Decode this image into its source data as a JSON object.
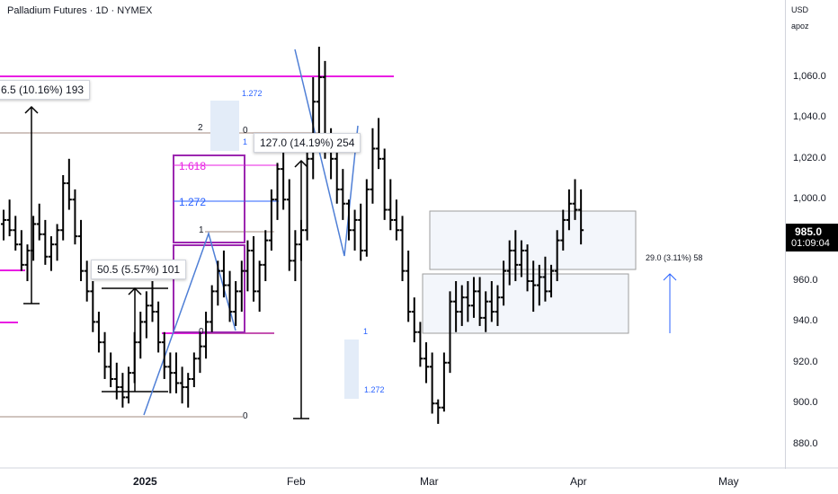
{
  "header": {
    "title": "Palladium Futures · 1D · NYMEX"
  },
  "axis": {
    "currency": "USD",
    "sub": "apoz"
  },
  "price": {
    "last": "985.0",
    "countdown": "01:09:04"
  },
  "colors": {
    "candle": "#000000",
    "magenta": "#e91ee3",
    "purple": "#9c27b0",
    "blue": "#2962ff",
    "zigzag": "#4f7fd6",
    "fibgrey": "#a1887f",
    "lightbox": "#e3ecf8"
  },
  "measures": {
    "left": "6.5 (10.16%) 193",
    "mid": "50.5 (5.57%) 101",
    "feb": "127.0 (14.19%) 254",
    "right": "29.0 (3.11%) 58"
  },
  "fib_labels": {
    "f1618": "1.618",
    "f1272": "1.272",
    "f1": "1",
    "f0": "0",
    "f2": "2",
    "f0_top": "0",
    "f1_top": "1",
    "f0_bottom": "0",
    "blue1272_top": "1.272",
    "blue1_mar": "1",
    "blue1272_mar": "1.272"
  },
  "chart_data": {
    "type": "ohlc",
    "title": "Palladium Futures · 1D · NYMEX",
    "ylim": [
      870,
      1080
    ],
    "y_ticks": [
      "1,060.0",
      "1,040.0",
      "1,020.0",
      "1,000.0",
      "980.0",
      "960.0",
      "940.0",
      "920.0",
      "900.0",
      "880.0"
    ],
    "x_ticks": [
      "2025",
      "Feb",
      "Mar",
      "Apr",
      "May"
    ],
    "last_price": 985.0,
    "series": [
      {
        "values": [
          [
            988,
            995,
            980,
            990
          ],
          [
            990,
            1000,
            982,
            985
          ],
          [
            985,
            992,
            975,
            978
          ],
          [
            978,
            985,
            965,
            968
          ],
          [
            968,
            978,
            960,
            975
          ],
          [
            975,
            992,
            970,
            988
          ],
          [
            988,
            998,
            980,
            983
          ],
          [
            983,
            990,
            968,
            972
          ],
          [
            972,
            982,
            965,
            978
          ],
          [
            978,
            988,
            970,
            985
          ],
          [
            985,
            1012,
            980,
            1008
          ],
          [
            1008,
            1020,
            995,
            1000
          ],
          [
            1000,
            1005,
            978,
            982
          ],
          [
            982,
            990,
            960,
            965
          ],
          [
            965,
            970,
            950,
            955
          ],
          [
            955,
            960,
            935,
            940
          ],
          [
            940,
            945,
            925,
            930
          ],
          [
            930,
            935,
            912,
            918
          ],
          [
            918,
            925,
            908,
            912
          ],
          [
            912,
            920,
            902,
            908
          ],
          [
            908,
            915,
            898,
            903
          ],
          [
            903,
            918,
            900,
            915
          ],
          [
            915,
            935,
            910,
            930
          ],
          [
            930,
            945,
            922,
            940
          ],
          [
            940,
            955,
            932,
            948
          ],
          [
            948,
            960,
            940,
            945
          ],
          [
            945,
            950,
            925,
            930
          ],
          [
            930,
            935,
            912,
            918
          ],
          [
            918,
            925,
            905,
            915
          ],
          [
            915,
            925,
            905,
            910
          ],
          [
            910,
            918,
            900,
            908
          ],
          [
            908,
            915,
            898,
            912
          ],
          [
            912,
            925,
            908,
            922
          ],
          [
            922,
            935,
            915,
            928
          ],
          [
            928,
            945,
            922,
            940
          ],
          [
            940,
            958,
            935,
            955
          ],
          [
            955,
            970,
            948,
            965
          ],
          [
            965,
            975,
            952,
            958
          ],
          [
            958,
            965,
            940,
            945
          ],
          [
            945,
            960,
            938,
            955
          ],
          [
            955,
            970,
            945,
            965
          ],
          [
            965,
            980,
            955,
            975
          ],
          [
            975,
            982,
            950,
            955
          ],
          [
            955,
            970,
            945,
            968
          ],
          [
            968,
            985,
            960,
            980
          ],
          [
            980,
            1005,
            975,
            1000
          ],
          [
            1000,
            1018,
            990,
            1015
          ],
          [
            1015,
            1025,
            995,
            1000
          ],
          [
            1000,
            1010,
            965,
            970
          ],
          [
            970,
            985,
            960,
            978
          ],
          [
            978,
            990,
            970,
            985
          ],
          [
            985,
            1025,
            980,
            1020
          ],
          [
            1020,
            1060,
            1010,
            1048
          ],
          [
            1048,
            1075,
            1030,
            1060
          ],
          [
            1060,
            1068,
            1020,
            1025
          ],
          [
            1025,
            1035,
            1010,
            1020
          ],
          [
            1020,
            1025,
            998,
            1005
          ],
          [
            1005,
            1015,
            990,
            998
          ],
          [
            998,
            1000,
            980,
            985
          ],
          [
            985,
            995,
            975,
            990
          ],
          [
            990,
            998,
            970,
            975
          ],
          [
            975,
            1010,
            972,
            1005
          ],
          [
            1005,
            1035,
            998,
            1025
          ],
          [
            1025,
            1040,
            1015,
            1020
          ],
          [
            1020,
            1025,
            990,
            995
          ],
          [
            995,
            1010,
            985,
            990
          ],
          [
            990,
            1000,
            980,
            985
          ],
          [
            985,
            992,
            960,
            965
          ],
          [
            965,
            975,
            940,
            945
          ],
          [
            945,
            952,
            930,
            935
          ],
          [
            935,
            940,
            918,
            922
          ],
          [
            922,
            930,
            910,
            918
          ],
          [
            918,
            925,
            895,
            900
          ],
          [
            900,
            902,
            890,
            898
          ],
          [
            898,
            925,
            896,
            920
          ],
          [
            920,
            955,
            915,
            950
          ],
          [
            950,
            960,
            935,
            945
          ],
          [
            945,
            958,
            938,
            952
          ],
          [
            952,
            960,
            940,
            948
          ],
          [
            948,
            962,
            942,
            955
          ],
          [
            955,
            962,
            938,
            942
          ],
          [
            942,
            955,
            935,
            950
          ],
          [
            950,
            960,
            940,
            945
          ],
          [
            945,
            958,
            938,
            952
          ],
          [
            952,
            970,
            948,
            965
          ],
          [
            965,
            980,
            958,
            975
          ],
          [
            975,
            985,
            960,
            968
          ],
          [
            968,
            980,
            962,
            975
          ],
          [
            975,
            978,
            955,
            960
          ],
          [
            960,
            970,
            945,
            958
          ],
          [
            958,
            968,
            948,
            962
          ],
          [
            962,
            972,
            950,
            955
          ],
          [
            955,
            968,
            952,
            965
          ],
          [
            965,
            985,
            960,
            980
          ],
          [
            980,
            995,
            975,
            990
          ],
          [
            990,
            1005,
            985,
            998
          ],
          [
            998,
            1010,
            990,
            995
          ],
          [
            995,
            1005,
            978,
            985
          ]
        ]
      }
    ]
  }
}
